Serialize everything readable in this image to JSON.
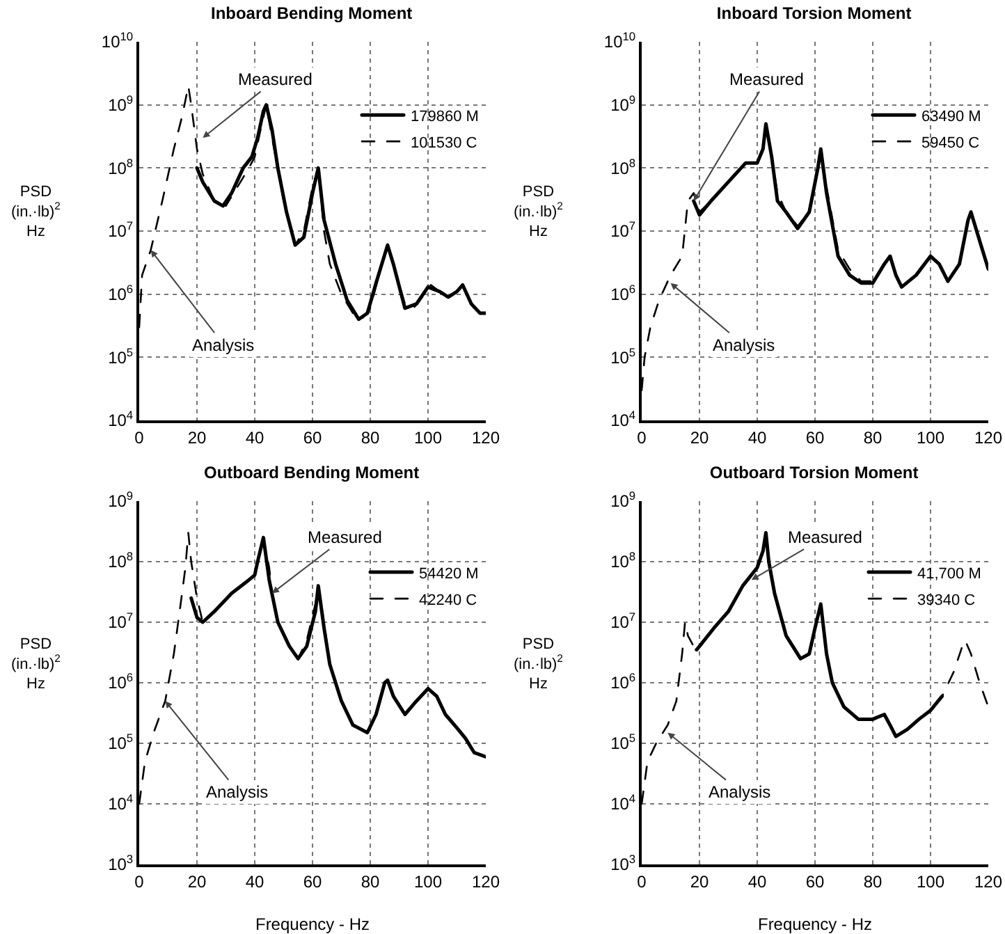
{
  "chart_data": [
    {
      "type": "line",
      "title": "Inboard Bending Moment",
      "ylabel": "PSD\n(in.·lb)$^{2}$\nHz",
      "log": true,
      "grid": true,
      "legend": "top right",
      "xlim": [
        0,
        120
      ],
      "xticks": [
        0,
        20,
        40,
        60,
        80,
        100,
        120
      ],
      "ylim": [
        10000,
        10000000000
      ],
      "yticks": [
        {
          "value": 10000,
          "label": "10$^{4}$"
        },
        {
          "value": 100000,
          "label": "10$^{5}$"
        },
        {
          "value": 1000000,
          "label": "10$^{6}$"
        },
        {
          "value": 10000000,
          "label": "10$^{7}$"
        },
        {
          "value": 100000000,
          "label": "10$^{8}$"
        },
        {
          "value": 1000000000,
          "label": "10$^{9}$"
        },
        {
          "value": 10000000000,
          "label": "10$^{10}$"
        }
      ],
      "annotations": [
        {
          "text": "Measured",
          "x": 22,
          "y": 300000000
        },
        {
          "text": "Analysis",
          "x": 4,
          "y": 5000000
        }
      ],
      "series": [
        {
          "name": "179860 M",
          "color": "#000000",
          "line_style": "solid",
          "x": [
            20,
            22,
            26,
            29,
            32,
            36,
            39,
            41,
            43,
            44,
            46,
            48,
            51,
            54,
            57,
            60,
            62,
            64,
            68,
            72,
            76,
            79,
            82,
            86,
            88,
            92,
            96,
            100,
            104,
            107,
            110,
            112,
            115,
            118,
            120
          ],
          "values": [
            100000000,
            60000000,
            30000000,
            25000000,
            40000000,
            100000000,
            150000000,
            300000000,
            800000000,
            1000000000,
            400000000,
            100000000,
            20000000,
            6000000,
            8000000,
            40000000,
            100000000,
            15000000,
            3000000,
            800000,
            400000,
            500000,
            1500000,
            6000000,
            3000000,
            600000,
            700000,
            1300000,
            1100000,
            900000,
            1100000,
            1400000,
            700000,
            500000,
            500000
          ]
        },
        {
          "name": "101530 C",
          "color": "#000000",
          "line_style": "dashed",
          "x": [
            0,
            1,
            4,
            8,
            12,
            15,
            17,
            18,
            20,
            22,
            26,
            30,
            34,
            38,
            40,
            42,
            44,
            46,
            50,
            54,
            57,
            60,
            62,
            64,
            66,
            70,
            74,
            77,
            80,
            84,
            86,
            88,
            92,
            95,
            98,
            101,
            104,
            107,
            110,
            112,
            115,
            118,
            120
          ],
          "values": [
            300000,
            2000000,
            5000000,
            30000000,
            200000000,
            700000000,
            2000000000,
            1000000000,
            200000000,
            80000000,
            30000000,
            25000000,
            50000000,
            100000000,
            150000000,
            400000000,
            1000000000,
            300000000,
            30000000,
            6000000,
            10000000,
            50000000,
            100000000,
            10000000,
            3000000,
            1000000,
            500000,
            400000,
            600000,
            3000000,
            6000000,
            3000000,
            700000,
            600000,
            900000,
            1400000,
            1100000,
            900000,
            1100000,
            1400000,
            700000,
            500000,
            500000
          ]
        }
      ]
    },
    {
      "type": "line",
      "title": "Inboard Torsion Moment",
      "ylabel": "PSD\n(in.·lb)$^{2}$\nHz",
      "log": true,
      "grid": true,
      "legend": "top right",
      "xlim": [
        0,
        120
      ],
      "xticks": [
        0,
        20,
        40,
        60,
        80,
        100,
        120
      ],
      "ylim": [
        10000,
        10000000000
      ],
      "yticks": [
        {
          "value": 10000,
          "label": "10$^{4}$"
        },
        {
          "value": 100000,
          "label": "10$^{5}$"
        },
        {
          "value": 1000000,
          "label": "10$^{6}$"
        },
        {
          "value": 10000000,
          "label": "10$^{7}$"
        },
        {
          "value": 100000000,
          "label": "10$^{8}$"
        },
        {
          "value": 1000000000,
          "label": "10$^{9}$"
        },
        {
          "value": 10000000000,
          "label": "10$^{10}$"
        }
      ],
      "annotations": [
        {
          "text": "Measured",
          "x": 18,
          "y": 30000000
        },
        {
          "text": "Analysis",
          "x": 10,
          "y": 1500000
        }
      ],
      "series": [
        {
          "name": "63490 M",
          "color": "#000000",
          "line_style": "solid",
          "x": [
            18,
            20,
            24,
            30,
            36,
            40,
            42,
            43,
            45,
            47,
            50,
            54,
            58,
            61,
            62,
            64,
            68,
            72,
            76,
            80,
            84,
            86,
            88,
            90,
            95,
            100,
            103,
            106,
            110,
            113,
            114,
            117,
            120
          ],
          "values": [
            30000000,
            18000000,
            30000000,
            60000000,
            120000000,
            120000000,
            200000000,
            500000000,
            150000000,
            30000000,
            20000000,
            11000000,
            20000000,
            100000000,
            200000000,
            40000000,
            4000000,
            2000000,
            1500000,
            1500000,
            3000000,
            4000000,
            2000000,
            1300000,
            2000000,
            4000000,
            3000000,
            1600000,
            3000000,
            15000000,
            20000000,
            7000000,
            2500000
          ]
        },
        {
          "name": "59450 C",
          "color": "#000000",
          "line_style": "dashed",
          "x": [
            0,
            1,
            3,
            6,
            10,
            14,
            16,
            18,
            20,
            24,
            30,
            36,
            40,
            42,
            43,
            45,
            47,
            50,
            54,
            58,
            61,
            62,
            64,
            68,
            72,
            76,
            80,
            84,
            86,
            88,
            90,
            95,
            100,
            103,
            106,
            110,
            113,
            114,
            117,
            120
          ],
          "values": [
            30000,
            100000,
            300000,
            800000,
            2000000,
            4000000,
            30000000,
            40000000,
            20000000,
            30000000,
            60000000,
            120000000,
            120000000,
            200000000,
            500000000,
            150000000,
            40000000,
            20000000,
            12000000,
            20000000,
            100000000,
            200000000,
            50000000,
            5000000,
            2500000,
            1600000,
            1600000,
            3000000,
            4000000,
            2000000,
            1300000,
            2000000,
            4000000,
            3000000,
            1600000,
            3000000,
            15000000,
            20000000,
            7000000,
            2500000
          ]
        }
      ]
    },
    {
      "type": "line",
      "title": "Outboard Bending Moment",
      "xlabel": "Frequency - Hz",
      "ylabel": "PSD\n(in.·lb)$^{2}$\nHz",
      "log": true,
      "grid": true,
      "legend": "top right",
      "xlim": [
        0,
        120
      ],
      "xticks": [
        0,
        20,
        40,
        60,
        80,
        100,
        120
      ],
      "ylim": [
        1000,
        1000000000
      ],
      "yticks": [
        {
          "value": 1000,
          "label": "10$^{3}$"
        },
        {
          "value": 10000,
          "label": "10$^{4}$"
        },
        {
          "value": 100000,
          "label": "10$^{5}$"
        },
        {
          "value": 1000000,
          "label": "10$^{6}$"
        },
        {
          "value": 10000000,
          "label": "10$^{7}$"
        },
        {
          "value": 100000000,
          "label": "10$^{8}$"
        },
        {
          "value": 1000000000,
          "label": "10$^{9}$"
        }
      ],
      "annotations": [
        {
          "text": "Measured",
          "x": 46,
          "y": 30000000
        },
        {
          "text": "Analysis",
          "x": 9,
          "y": 500000
        }
      ],
      "series": [
        {
          "name": "54420 M",
          "color": "#000000",
          "line_style": "solid",
          "x": [
            18,
            20,
            22,
            26,
            32,
            38,
            40,
            41,
            43,
            45,
            48,
            52,
            55,
            58,
            61,
            62,
            64,
            66,
            70,
            74,
            79,
            82,
            85,
            86,
            88,
            92,
            96,
            100,
            103,
            106,
            110,
            113,
            116,
            120
          ],
          "values": [
            25000000,
            12000000,
            10000000,
            15000000,
            30000000,
            50000000,
            60000000,
            100000000,
            250000000,
            50000000,
            10000000,
            4000000,
            2500000,
            4000000,
            15000000,
            40000000,
            8000000,
            2000000,
            500000,
            200000,
            150000,
            300000,
            1000000,
            1100000,
            600000,
            300000,
            500000,
            800000,
            600000,
            300000,
            180000,
            120000,
            70000,
            60000
          ]
        },
        {
          "name": "42240 C",
          "color": "#000000",
          "line_style": "dashed",
          "x": [
            0,
            2,
            5,
            9,
            12,
            14,
            16,
            17,
            18,
            19,
            20,
            22,
            26,
            32,
            38,
            40,
            41,
            43,
            45,
            46,
            48,
            52,
            55,
            58,
            61,
            62,
            64,
            66,
            70,
            74,
            79,
            82,
            85,
            86,
            88,
            92,
            96,
            100,
            103,
            106,
            110,
            113,
            116,
            120
          ],
          "values": [
            10000,
            50000,
            150000,
            500000,
            3000000,
            15000000,
            80000000,
            300000000,
            100000000,
            50000000,
            25000000,
            10000000,
            15000000,
            30000000,
            50000000,
            60000000,
            100000000,
            250000000,
            80000000,
            30000000,
            10000000,
            4000000,
            2500000,
            5000000,
            20000000,
            40000000,
            10000000,
            2000000,
            500000,
            200000,
            150000,
            300000,
            1000000,
            1100000,
            600000,
            300000,
            500000,
            800000,
            600000,
            300000,
            180000,
            120000,
            70000,
            60000
          ]
        }
      ]
    },
    {
      "type": "line",
      "title": "Outboard Torsion Moment",
      "xlabel": "Frequency - Hz",
      "ylabel": "PSD\n(in.·lb)$^{2}$\nHz",
      "log": true,
      "grid": true,
      "legend": "top right",
      "xlim": [
        0,
        120
      ],
      "xticks": [
        0,
        20,
        40,
        60,
        80,
        100,
        120
      ],
      "ylim": [
        1000,
        1000000000
      ],
      "yticks": [
        {
          "value": 1000,
          "label": "10$^{3}$"
        },
        {
          "value": 10000,
          "label": "10$^{4}$"
        },
        {
          "value": 100000,
          "label": "10$^{5}$"
        },
        {
          "value": 1000000,
          "label": "10$^{6}$"
        },
        {
          "value": 10000000,
          "label": "10$^{7}$"
        },
        {
          "value": 100000000,
          "label": "10$^{8}$"
        },
        {
          "value": 1000000000,
          "label": "10$^{9}$"
        }
      ],
      "annotations": [
        {
          "text": "Measured",
          "x": 38,
          "y": 50000000
        },
        {
          "text": "Analysis",
          "x": 9,
          "y": 150000
        }
      ],
      "series": [
        {
          "name": "41,700 M",
          "color": "#000000",
          "line_style": "solid",
          "x": [
            19,
            20,
            25,
            30,
            35,
            40,
            42,
            43,
            44,
            46,
            50,
            55,
            58,
            60,
            62,
            64,
            66,
            70,
            75,
            80,
            84,
            86,
            88,
            92,
            96,
            100,
            104
          ],
          "values": [
            3500000,
            4000000,
            8000000,
            15000000,
            40000000,
            80000000,
            150000000,
            300000000,
            100000000,
            30000000,
            6000000,
            2500000,
            3000000,
            8000000,
            20000000,
            3000000,
            1000000,
            400000,
            250000,
            250000,
            300000,
            200000,
            130000,
            170000,
            250000,
            350000,
            600000
          ]
        },
        {
          "name": "39340 C",
          "color": "#000000",
          "line_style": "dashed",
          "x": [
            0,
            2,
            5,
            9,
            12,
            14,
            15,
            16,
            18,
            20,
            25,
            30,
            35,
            40,
            42,
            43,
            44,
            46,
            50,
            55,
            58,
            60,
            62,
            64,
            66,
            70,
            75,
            80,
            84,
            86,
            88,
            92,
            96,
            100,
            104,
            108,
            111,
            112,
            114,
            117,
            120
          ],
          "values": [
            10000,
            50000,
            100000,
            200000,
            500000,
            3000000,
            10000000,
            6000000,
            4000000,
            4000000,
            8000000,
            15000000,
            40000000,
            80000000,
            150000000,
            300000000,
            100000000,
            30000000,
            6000000,
            2500000,
            3000000,
            8000000,
            20000000,
            3000000,
            1000000,
            400000,
            250000,
            250000,
            300000,
            200000,
            130000,
            170000,
            250000,
            350000,
            600000,
            1500000,
            4000000,
            5000000,
            3000000,
            1000000,
            400000
          ]
        }
      ]
    }
  ]
}
